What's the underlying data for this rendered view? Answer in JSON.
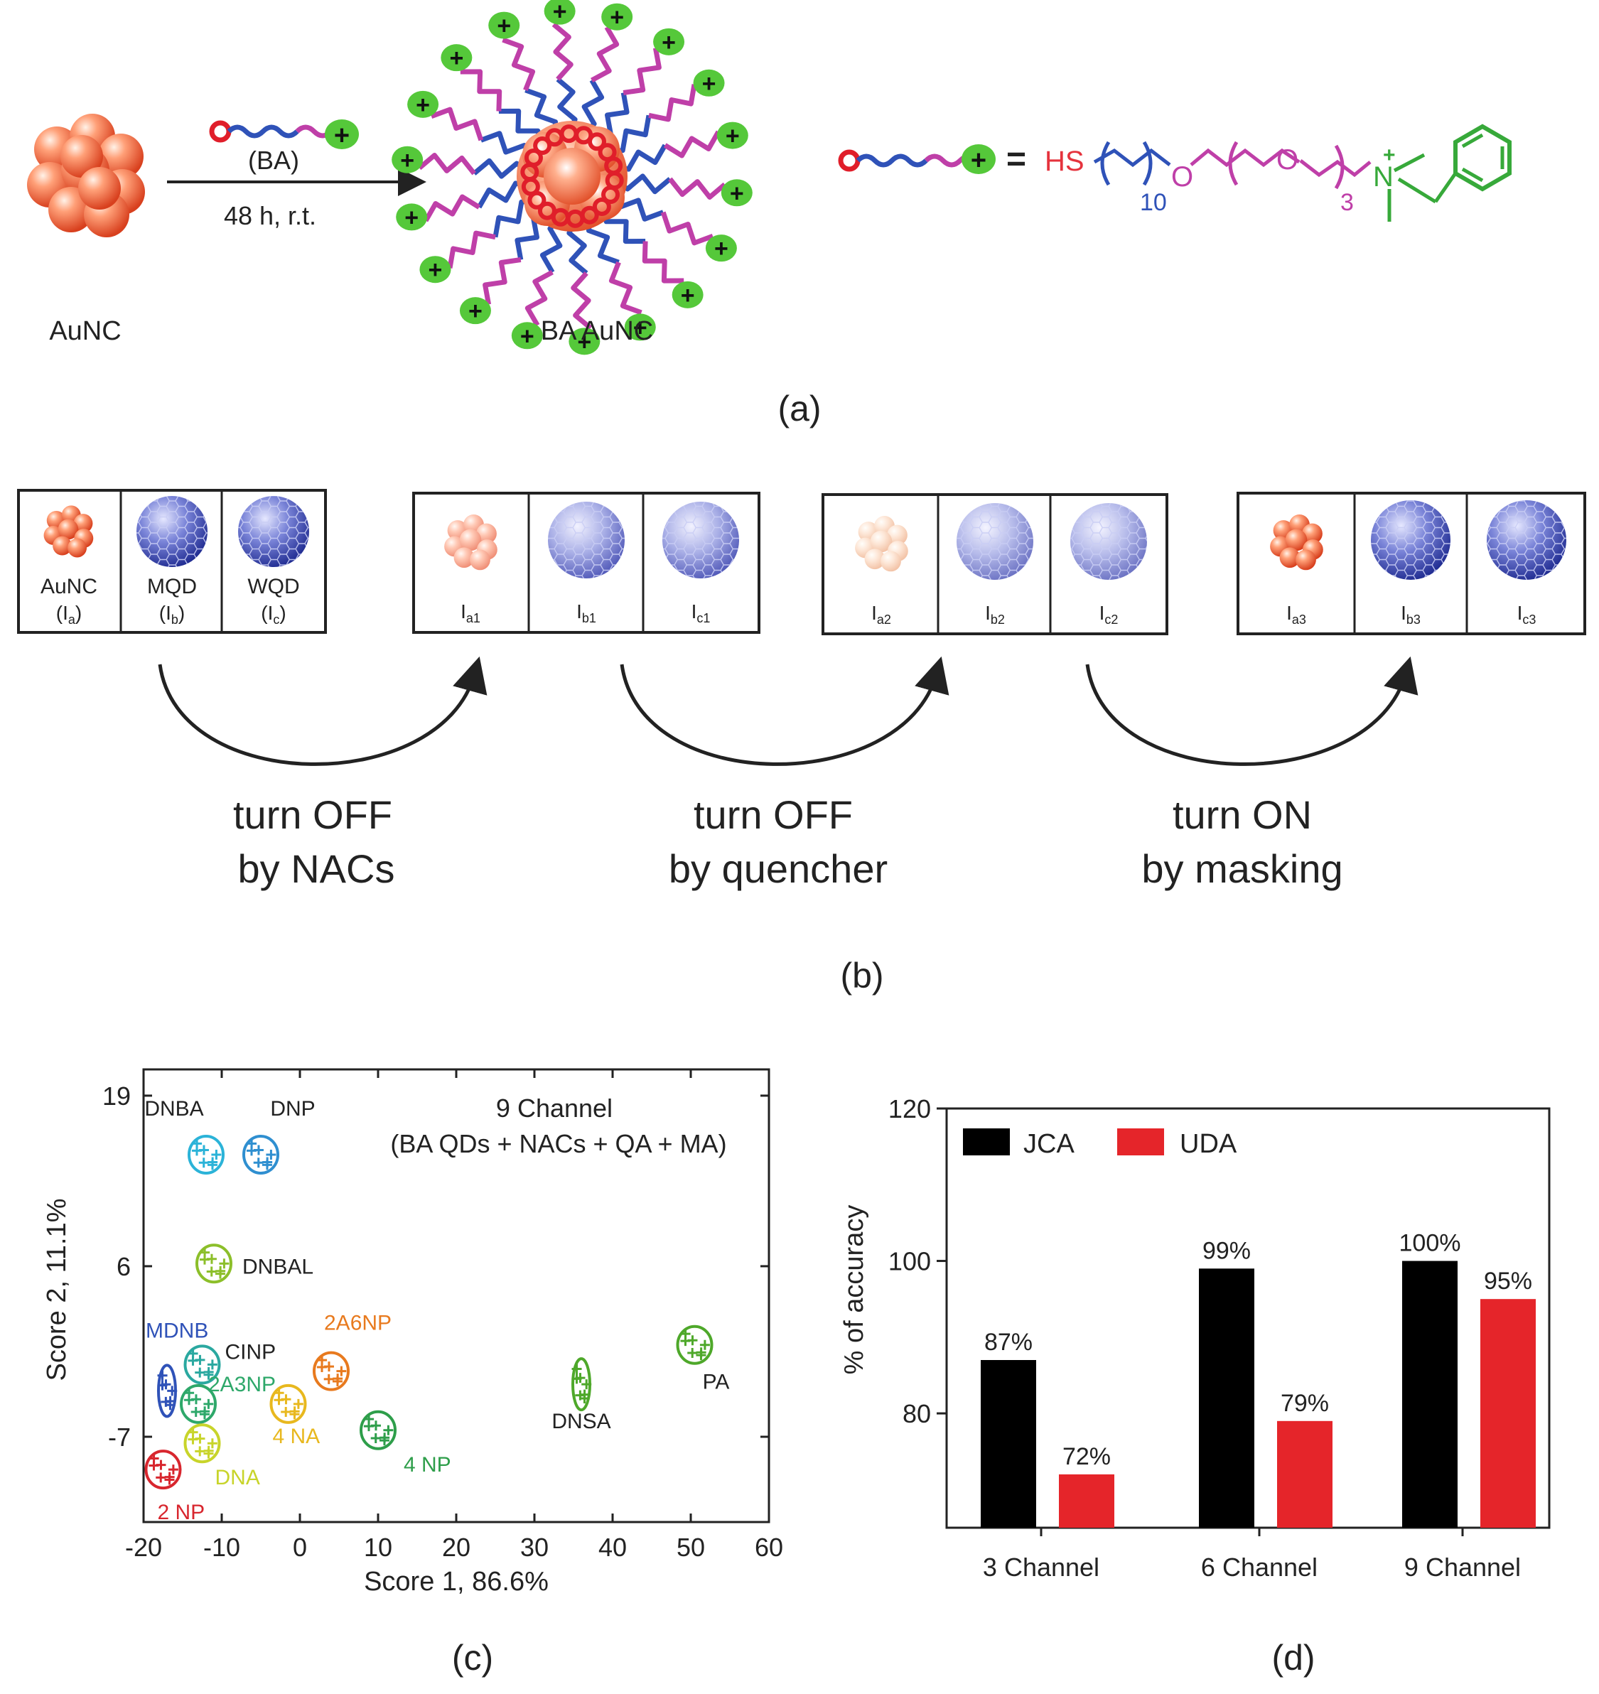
{
  "colors": {
    "gold": "#f2603a",
    "gold_light": "#ffb59a",
    "plus": "#55c83a",
    "pink": "#bf3fa8",
    "blue": "#2f52b8",
    "red": "#e5333d",
    "green": "#37a93a",
    "qd": "#4d5cc0",
    "black": "#111111"
  },
  "panel_a": {
    "reagent_label": "(BA)",
    "conditions": "48 h, r.t.",
    "aunc_label": "AuNC",
    "ba_aunc_label": "BA AuNC",
    "equals": "=",
    "hs": "HS",
    "sub10": "10",
    "o1": "O",
    "o2": "O",
    "sub3": "3",
    "n_plus": "N",
    "plus_sign": "+",
    "caption": "(a)"
  },
  "panel_b": {
    "box1": {
      "labels": [
        {
          "name": "AuNC",
          "sub_pre": "(I",
          "sub": "a",
          "sub_post": ")"
        },
        {
          "name": "MQD",
          "sub_pre": "(I",
          "sub": "b",
          "sub_post": ")"
        },
        {
          "name": "WQD",
          "sub_pre": "(I",
          "sub": "c",
          "sub_post": ")"
        }
      ]
    },
    "box2": {
      "labels": [
        {
          "main": "I",
          "sub": "a1"
        },
        {
          "main": "I",
          "sub": "b1"
        },
        {
          "main": "I",
          "sub": "c1"
        }
      ]
    },
    "box3": {
      "labels": [
        {
          "main": "I",
          "sub": "a2"
        },
        {
          "main": "I",
          "sub": "b2"
        },
        {
          "main": "I",
          "sub": "c2"
        }
      ]
    },
    "box4": {
      "labels": [
        {
          "main": "I",
          "sub": "a3"
        },
        {
          "main": "I",
          "sub": "b3"
        },
        {
          "main": "I",
          "sub": "c3"
        }
      ]
    },
    "step1": {
      "line1": "turn OFF",
      "line2": "by NACs"
    },
    "step2": {
      "line1": "turn OFF",
      "line2": "by quencher"
    },
    "step3": {
      "line1": "turn ON",
      "line2": "by masking"
    },
    "caption": "(b)"
  },
  "chart_data": [
    {
      "type": "scatter",
      "title": "9 Channel",
      "subtitle": "(BA QDs + NACs + QA + MA)",
      "xlabel": "Score 1, 86.6%",
      "ylabel": "Score 2, 11.1%",
      "xlim": [
        -20,
        60
      ],
      "ylim": [
        -13.5,
        21
      ],
      "xticks": [
        -20,
        -10,
        0,
        10,
        20,
        30,
        40,
        50,
        60
      ],
      "yticks": [
        19,
        6,
        -7
      ],
      "clusters": [
        {
          "name": "DNBA",
          "x": -12,
          "y": 14.5,
          "color": "#2bb3d8"
        },
        {
          "name": "DNP",
          "x": -5,
          "y": 14.5,
          "color": "#2f8fd0"
        },
        {
          "name": "DNBAL",
          "x": -11,
          "y": 6.2,
          "color": "#8cbf2a"
        },
        {
          "name": "MDNB",
          "x": -17,
          "y": -3.5,
          "color": "#2f52b8"
        },
        {
          "name": "CINP",
          "x": -12.5,
          "y": -1.5,
          "color": "#2aa8a0"
        },
        {
          "name": "2A3NP",
          "x": -13,
          "y": -4.5,
          "color": "#2ea86a"
        },
        {
          "name": "2A6NP",
          "x": 4,
          "y": -2,
          "color": "#e87a1e"
        },
        {
          "name": "4 NA",
          "x": -1.5,
          "y": -4.5,
          "color": "#e8b81e"
        },
        {
          "name": "4 NP",
          "x": 10,
          "y": -6.5,
          "color": "#2e9e4a"
        },
        {
          "name": "DNA",
          "x": -12.5,
          "y": -7.5,
          "color": "#c8d42a"
        },
        {
          "name": "2 NP",
          "x": -17.5,
          "y": -9.5,
          "color": "#d8262e"
        },
        {
          "name": "DNSA",
          "x": 36,
          "y": -3,
          "color": "#4ea82a"
        },
        {
          "name": "PA",
          "x": 50.5,
          "y": 0,
          "color": "#4ea82a"
        }
      ],
      "caption": "(c)"
    },
    {
      "type": "bar",
      "ylabel": "% of accuracy",
      "ylim": [
        65,
        120
      ],
      "yticks": [
        80,
        100,
        120
      ],
      "categories": [
        "3 Channel",
        "6 Channel",
        "9 Channel"
      ],
      "series": [
        {
          "name": "JCA",
          "color": "#000000",
          "values": [
            87,
            99,
            100
          ],
          "labels": [
            "87%",
            "99%",
            "100%"
          ]
        },
        {
          "name": "UDA",
          "color": "#e5252a",
          "values": [
            72,
            79,
            95
          ],
          "labels": [
            "72%",
            "79%",
            "95%"
          ]
        }
      ],
      "caption": "(d)"
    }
  ]
}
